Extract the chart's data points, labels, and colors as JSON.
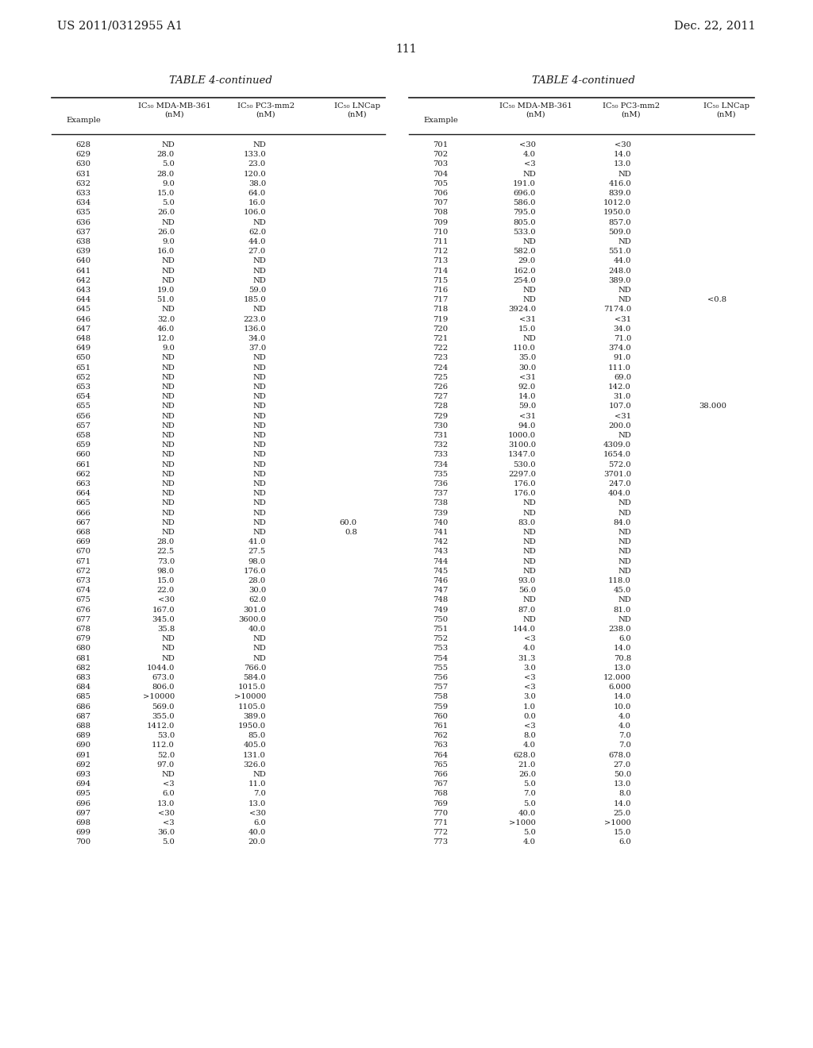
{
  "header_left": "US 2011/0312955 A1",
  "header_right": "Dec. 22, 2011",
  "page_number": "111",
  "table_title": "TABLE 4-continued",
  "left_table": [
    [
      "628",
      "ND",
      "ND",
      ""
    ],
    [
      "629",
      "28.0",
      "133.0",
      ""
    ],
    [
      "630",
      "5.0",
      "23.0",
      ""
    ],
    [
      "631",
      "28.0",
      "120.0",
      ""
    ],
    [
      "632",
      "9.0",
      "38.0",
      ""
    ],
    [
      "633",
      "15.0",
      "64.0",
      ""
    ],
    [
      "634",
      "5.0",
      "16.0",
      ""
    ],
    [
      "635",
      "26.0",
      "106.0",
      ""
    ],
    [
      "636",
      "ND",
      "ND",
      ""
    ],
    [
      "637",
      "26.0",
      "62.0",
      ""
    ],
    [
      "638",
      "9.0",
      "44.0",
      ""
    ],
    [
      "639",
      "16.0",
      "27.0",
      ""
    ],
    [
      "640",
      "ND",
      "ND",
      ""
    ],
    [
      "641",
      "ND",
      "ND",
      ""
    ],
    [
      "642",
      "ND",
      "ND",
      ""
    ],
    [
      "643",
      "19.0",
      "59.0",
      ""
    ],
    [
      "644",
      "51.0",
      "185.0",
      ""
    ],
    [
      "645",
      "ND",
      "ND",
      ""
    ],
    [
      "646",
      "32.0",
      "223.0",
      ""
    ],
    [
      "647",
      "46.0",
      "136.0",
      ""
    ],
    [
      "648",
      "12.0",
      "34.0",
      ""
    ],
    [
      "649",
      "9.0",
      "37.0",
      ""
    ],
    [
      "650",
      "ND",
      "ND",
      ""
    ],
    [
      "651",
      "ND",
      "ND",
      ""
    ],
    [
      "652",
      "ND",
      "ND",
      ""
    ],
    [
      "653",
      "ND",
      "ND",
      ""
    ],
    [
      "654",
      "ND",
      "ND",
      ""
    ],
    [
      "655",
      "ND",
      "ND",
      ""
    ],
    [
      "656",
      "ND",
      "ND",
      ""
    ],
    [
      "657",
      "ND",
      "ND",
      ""
    ],
    [
      "658",
      "ND",
      "ND",
      ""
    ],
    [
      "659",
      "ND",
      "ND",
      ""
    ],
    [
      "660",
      "ND",
      "ND",
      ""
    ],
    [
      "661",
      "ND",
      "ND",
      ""
    ],
    [
      "662",
      "ND",
      "ND",
      ""
    ],
    [
      "663",
      "ND",
      "ND",
      ""
    ],
    [
      "664",
      "ND",
      "ND",
      ""
    ],
    [
      "665",
      "ND",
      "ND",
      ""
    ],
    [
      "666",
      "ND",
      "ND",
      ""
    ],
    [
      "667",
      "ND",
      "ND",
      "60.0"
    ],
    [
      "668",
      "ND",
      "ND",
      "0.8"
    ],
    [
      "669",
      "28.0",
      "41.0",
      ""
    ],
    [
      "670",
      "22.5",
      "27.5",
      ""
    ],
    [
      "671",
      "73.0",
      "98.0",
      ""
    ],
    [
      "672",
      "98.0",
      "176.0",
      ""
    ],
    [
      "673",
      "15.0",
      "28.0",
      ""
    ],
    [
      "674",
      "22.0",
      "30.0",
      ""
    ],
    [
      "675",
      "<30",
      "62.0",
      ""
    ],
    [
      "676",
      "167.0",
      "301.0",
      ""
    ],
    [
      "677",
      "345.0",
      "3600.0",
      ""
    ],
    [
      "678",
      "35.8",
      "40.0",
      ""
    ],
    [
      "679",
      "ND",
      "ND",
      ""
    ],
    [
      "680",
      "ND",
      "ND",
      ""
    ],
    [
      "681",
      "ND",
      "ND",
      ""
    ],
    [
      "682",
      "1044.0",
      "766.0",
      ""
    ],
    [
      "683",
      "673.0",
      "584.0",
      ""
    ],
    [
      "684",
      "806.0",
      "1015.0",
      ""
    ],
    [
      "685",
      ">10000",
      ">10000",
      ""
    ],
    [
      "686",
      "569.0",
      "1105.0",
      ""
    ],
    [
      "687",
      "355.0",
      "389.0",
      ""
    ],
    [
      "688",
      "1412.0",
      "1950.0",
      ""
    ],
    [
      "689",
      "53.0",
      "85.0",
      ""
    ],
    [
      "690",
      "112.0",
      "405.0",
      ""
    ],
    [
      "691",
      "52.0",
      "131.0",
      ""
    ],
    [
      "692",
      "97.0",
      "326.0",
      ""
    ],
    [
      "693",
      "ND",
      "ND",
      ""
    ],
    [
      "694",
      "<3",
      "11.0",
      ""
    ],
    [
      "695",
      "6.0",
      "7.0",
      ""
    ],
    [
      "696",
      "13.0",
      "13.0",
      ""
    ],
    [
      "697",
      "<30",
      "<30",
      ""
    ],
    [
      "698",
      "<3",
      "6.0",
      ""
    ],
    [
      "699",
      "36.0",
      "40.0",
      ""
    ],
    [
      "700",
      "5.0",
      "20.0",
      ""
    ]
  ],
  "right_table": [
    [
      "701",
      "<30",
      "<30",
      ""
    ],
    [
      "702",
      "4.0",
      "14.0",
      ""
    ],
    [
      "703",
      "<3",
      "13.0",
      ""
    ],
    [
      "704",
      "ND",
      "ND",
      ""
    ],
    [
      "705",
      "191.0",
      "416.0",
      ""
    ],
    [
      "706",
      "696.0",
      "839.0",
      ""
    ],
    [
      "707",
      "586.0",
      "1012.0",
      ""
    ],
    [
      "708",
      "795.0",
      "1950.0",
      ""
    ],
    [
      "709",
      "805.0",
      "857.0",
      ""
    ],
    [
      "710",
      "533.0",
      "509.0",
      ""
    ],
    [
      "711",
      "ND",
      "ND",
      ""
    ],
    [
      "712",
      "582.0",
      "551.0",
      ""
    ],
    [
      "713",
      "29.0",
      "44.0",
      ""
    ],
    [
      "714",
      "162.0",
      "248.0",
      ""
    ],
    [
      "715",
      "254.0",
      "389.0",
      ""
    ],
    [
      "716",
      "ND",
      "ND",
      ""
    ],
    [
      "717",
      "ND",
      "ND",
      "<0.8"
    ],
    [
      "718",
      "3924.0",
      "7174.0",
      ""
    ],
    [
      "719",
      "<31",
      "<31",
      ""
    ],
    [
      "720",
      "15.0",
      "34.0",
      ""
    ],
    [
      "721",
      "ND",
      "71.0",
      ""
    ],
    [
      "722",
      "110.0",
      "374.0",
      ""
    ],
    [
      "723",
      "35.0",
      "91.0",
      ""
    ],
    [
      "724",
      "30.0",
      "111.0",
      ""
    ],
    [
      "725",
      "<31",
      "69.0",
      ""
    ],
    [
      "726",
      "92.0",
      "142.0",
      ""
    ],
    [
      "727",
      "14.0",
      "31.0",
      ""
    ],
    [
      "728",
      "59.0",
      "107.0",
      "38.000"
    ],
    [
      "729",
      "<31",
      "<31",
      ""
    ],
    [
      "730",
      "94.0",
      "200.0",
      ""
    ],
    [
      "731",
      "1000.0",
      "ND",
      ""
    ],
    [
      "732",
      "3100.0",
      "4309.0",
      ""
    ],
    [
      "733",
      "1347.0",
      "1654.0",
      ""
    ],
    [
      "734",
      "530.0",
      "572.0",
      ""
    ],
    [
      "735",
      "2297.0",
      "3701.0",
      ""
    ],
    [
      "736",
      "176.0",
      "247.0",
      ""
    ],
    [
      "737",
      "176.0",
      "404.0",
      ""
    ],
    [
      "738",
      "ND",
      "ND",
      ""
    ],
    [
      "739",
      "ND",
      "ND",
      ""
    ],
    [
      "740",
      "83.0",
      "84.0",
      ""
    ],
    [
      "741",
      "ND",
      "ND",
      ""
    ],
    [
      "742",
      "ND",
      "ND",
      ""
    ],
    [
      "743",
      "ND",
      "ND",
      ""
    ],
    [
      "744",
      "ND",
      "ND",
      ""
    ],
    [
      "745",
      "ND",
      "ND",
      ""
    ],
    [
      "746",
      "93.0",
      "118.0",
      ""
    ],
    [
      "747",
      "56.0",
      "45.0",
      ""
    ],
    [
      "748",
      "ND",
      "ND",
      ""
    ],
    [
      "749",
      "87.0",
      "81.0",
      ""
    ],
    [
      "750",
      "ND",
      "ND",
      ""
    ],
    [
      "751",
      "144.0",
      "238.0",
      ""
    ],
    [
      "752",
      "<3",
      "6.0",
      ""
    ],
    [
      "753",
      "4.0",
      "14.0",
      ""
    ],
    [
      "754",
      "31.3",
      "70.8",
      ""
    ],
    [
      "755",
      "3.0",
      "13.0",
      ""
    ],
    [
      "756",
      "<3",
      "12.000",
      ""
    ],
    [
      "757",
      "<3",
      "6.000",
      ""
    ],
    [
      "758",
      "3.0",
      "14.0",
      ""
    ],
    [
      "759",
      "1.0",
      "10.0",
      ""
    ],
    [
      "760",
      "0.0",
      "4.0",
      ""
    ],
    [
      "761",
      "<3",
      "4.0",
      ""
    ],
    [
      "762",
      "8.0",
      "7.0",
      ""
    ],
    [
      "763",
      "4.0",
      "7.0",
      ""
    ],
    [
      "764",
      "628.0",
      "678.0",
      ""
    ],
    [
      "765",
      "21.0",
      "27.0",
      ""
    ],
    [
      "766",
      "26.0",
      "50.0",
      ""
    ],
    [
      "767",
      "5.0",
      "13.0",
      ""
    ],
    [
      "768",
      "7.0",
      "8.0",
      ""
    ],
    [
      "769",
      "5.0",
      "14.0",
      ""
    ],
    [
      "770",
      "40.0",
      "25.0",
      ""
    ],
    [
      "771",
      ">1000",
      ">1000",
      ""
    ],
    [
      "772",
      "5.0",
      "15.0",
      ""
    ],
    [
      "773",
      "4.0",
      "6.0",
      ""
    ]
  ],
  "background_color": "#ffffff",
  "text_color": "#1a1a1a",
  "font_size": 7.2,
  "title_font_size": 9.5,
  "page_num_font_size": 10.0,
  "header_font_size": 10.5
}
